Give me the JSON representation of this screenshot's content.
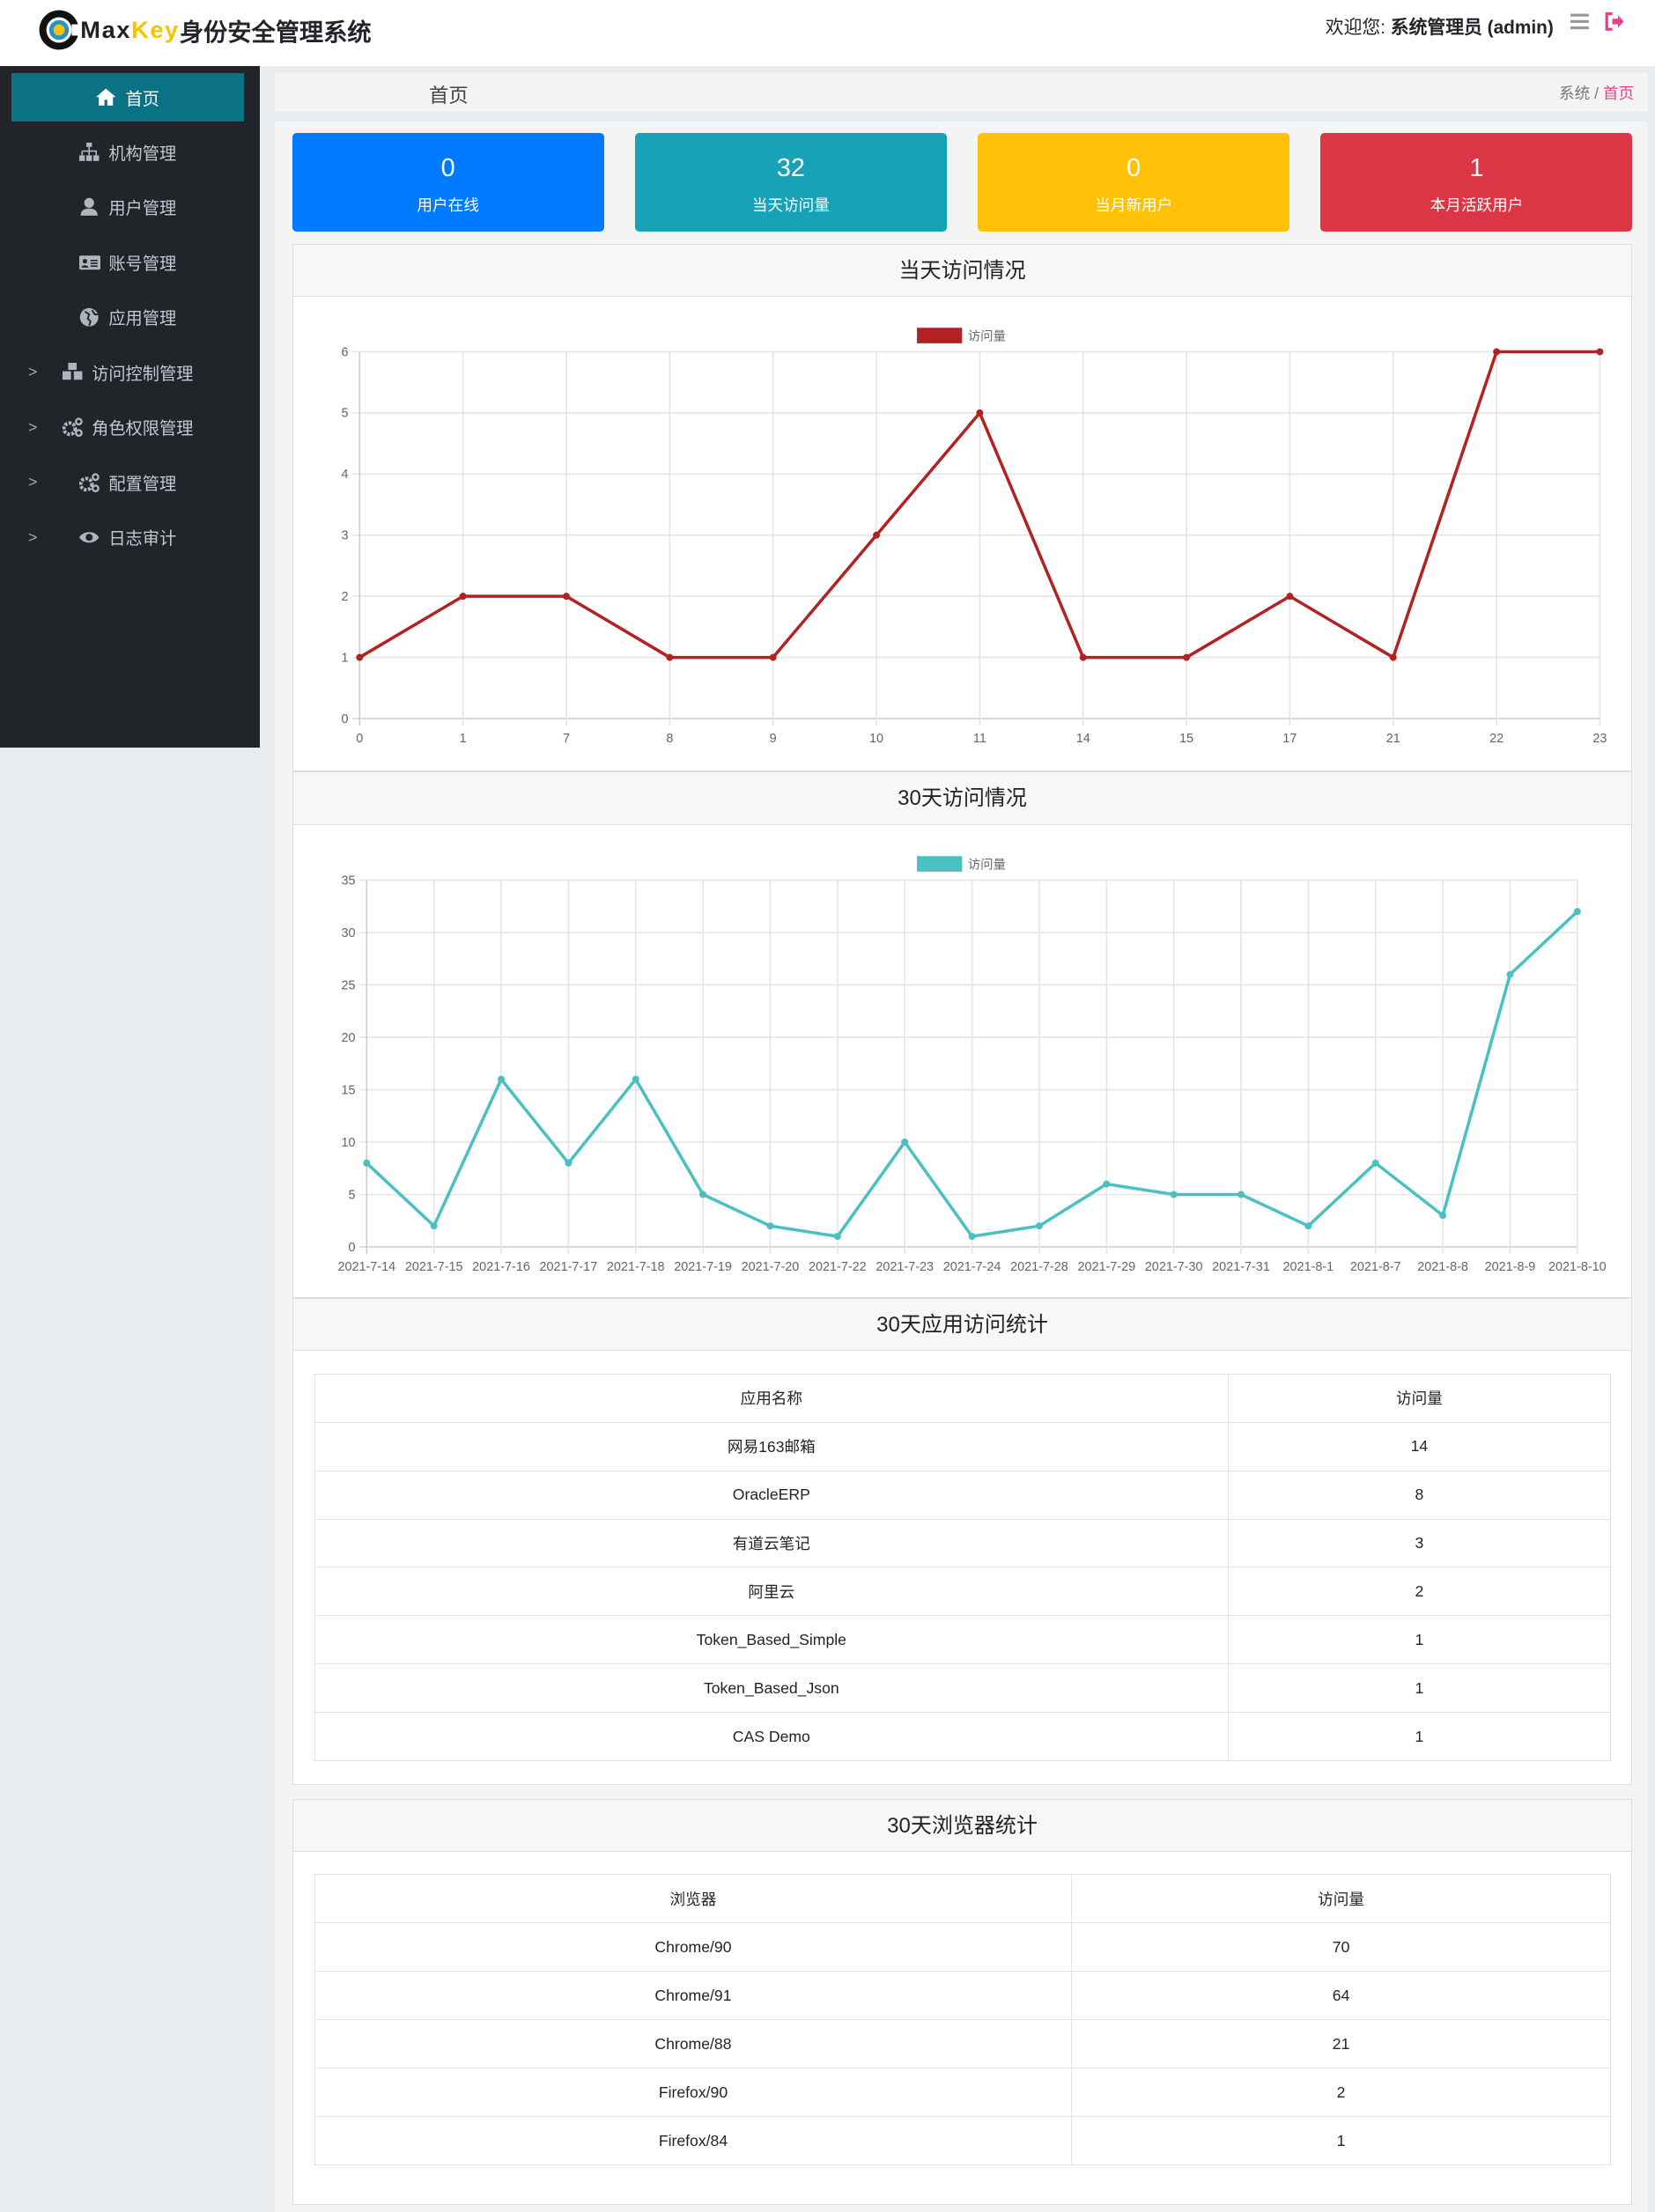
{
  "header": {
    "brand_max": "Max",
    "brand_key": "Key",
    "brand_title": "身份安全管理系统",
    "welcome_label": "欢迎您: ",
    "user": "系统管理员 (admin)",
    "icons": [
      "menu-icon",
      "logout-icon"
    ]
  },
  "sidebar": {
    "items": [
      {
        "label": "首页",
        "icon": "home-icon",
        "active": true,
        "expandable": false
      },
      {
        "label": "机构管理",
        "icon": "sitemap-icon",
        "expandable": false
      },
      {
        "label": "用户管理",
        "icon": "user-icon",
        "expandable": false
      },
      {
        "label": "账号管理",
        "icon": "id-card-icon",
        "expandable": false
      },
      {
        "label": "应用管理",
        "icon": "globe-icon",
        "expandable": false
      },
      {
        "label": "访问控制管理",
        "icon": "cubes-icon",
        "expandable": true
      },
      {
        "label": "角色权限管理",
        "icon": "cogs-icon",
        "expandable": true
      },
      {
        "label": "配置管理",
        "icon": "cogs-icon",
        "expandable": true
      },
      {
        "label": "日志审计",
        "icon": "eye-icon",
        "expandable": true
      }
    ]
  },
  "page": {
    "title": "首页",
    "breadcrumb": [
      "系统",
      "首页"
    ]
  },
  "stats": [
    {
      "value": "0",
      "label": "用户在线",
      "color": "#007bff"
    },
    {
      "value": "32",
      "label": "当天访问量",
      "color": "#17a2b8"
    },
    {
      "value": "0",
      "label": "当月新用户",
      "color": "#ffc107"
    },
    {
      "value": "1",
      "label": "本月活跃用户",
      "color": "#dc3545"
    }
  ],
  "cards": {
    "today": "当天访问情况",
    "days30": "30天访问情况",
    "apps": "30天应用访问统计",
    "browsers": "30天浏览器统计"
  },
  "chart_data": [
    {
      "type": "line",
      "legend": "top",
      "series": [
        {
          "name": "访问量",
          "color": "#b22222",
          "values": [
            1,
            2,
            2,
            1,
            1,
            3,
            5,
            1,
            1,
            2,
            1,
            6,
            6
          ]
        }
      ],
      "categories": [
        "0",
        "1",
        "7",
        "8",
        "9",
        "10",
        "11",
        "14",
        "15",
        "17",
        "21",
        "22",
        "23"
      ],
      "ylim": [
        0,
        6
      ],
      "yticks": [
        0,
        1,
        2,
        3,
        4,
        5,
        6
      ],
      "grid": true
    },
    {
      "type": "line",
      "legend": "top",
      "series": [
        {
          "name": "访问量",
          "color": "#4bc0c0",
          "values": [
            8,
            2,
            16,
            8,
            16,
            5,
            2,
            1,
            10,
            1,
            2,
            6,
            5,
            5,
            2,
            8,
            3,
            26,
            32
          ]
        }
      ],
      "categories": [
        "2021-7-14",
        "2021-7-15",
        "2021-7-16",
        "2021-7-17",
        "2021-7-18",
        "2021-7-19",
        "2021-7-20",
        "2021-7-22",
        "2021-7-23",
        "2021-7-24",
        "2021-7-28",
        "2021-7-29",
        "2021-7-30",
        "2021-7-31",
        "2021-8-1",
        "2021-8-7",
        "2021-8-8",
        "2021-8-9",
        "2021-8-10"
      ],
      "ylim": [
        0,
        35
      ],
      "yticks": [
        0,
        5,
        10,
        15,
        20,
        25,
        30,
        35
      ],
      "grid": true
    }
  ],
  "apps_table": {
    "headers": [
      "应用名称",
      "访问量"
    ],
    "rows": [
      [
        "网易163邮箱",
        "14"
      ],
      [
        "OracleERP",
        "8"
      ],
      [
        "有道云笔记",
        "3"
      ],
      [
        "阿里云",
        "2"
      ],
      [
        "Token_Based_Simple",
        "1"
      ],
      [
        "Token_Based_Json",
        "1"
      ],
      [
        "CAS Demo",
        "1"
      ]
    ]
  },
  "browser_table": {
    "headers": [
      "浏览器",
      "访问量"
    ],
    "rows": [
      [
        "Chrome/90",
        "70"
      ],
      [
        "Chrome/91",
        "64"
      ],
      [
        "Chrome/88",
        "21"
      ],
      [
        "Firefox/90",
        "2"
      ],
      [
        "Firefox/84",
        "1"
      ]
    ]
  }
}
